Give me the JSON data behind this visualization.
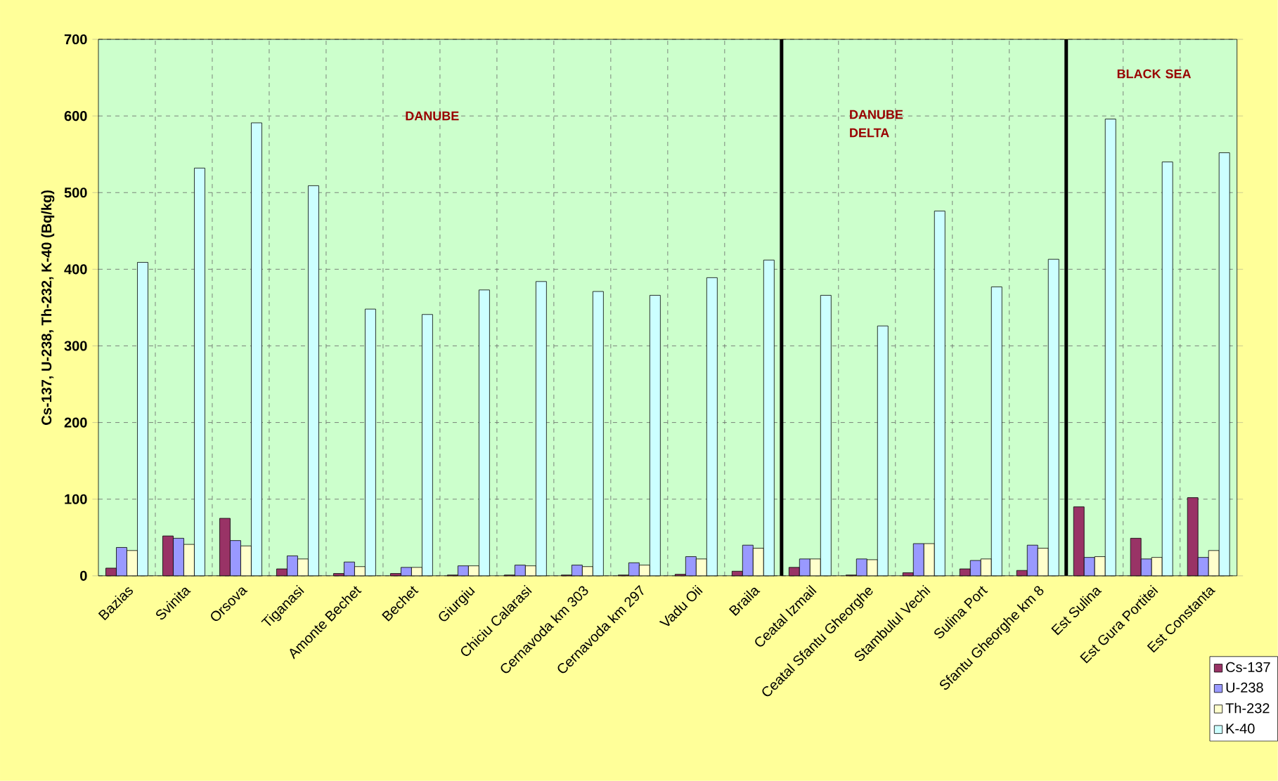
{
  "chart_data": {
    "type": "bar",
    "ylabel": "Cs-137, U-238, Th-232, K-40 (Bq/kg)",
    "categories": [
      "Bazias",
      "Svinita",
      "Orsova",
      "Tiganasi",
      "Amonte Bechet",
      "Bechet",
      "Giurgiu",
      "Chiciu Calarasi",
      "Cernavoda km 303",
      "Cernavoda km 297",
      "Vadu Oii",
      "Braila",
      "Ceatal Izmail",
      "Ceatal Sfantu Gheorghe",
      "Stambulul Vechi",
      "Sulina Port",
      "Sfantu Gheorghe km 8",
      "Est Sulina",
      "Est Gura Portitei",
      "Est Constanta"
    ],
    "series": [
      {
        "name": "Cs-137",
        "color": "#993366",
        "values": [
          10,
          52,
          75,
          9,
          3,
          3,
          1,
          1,
          1,
          1,
          2,
          6,
          11,
          1,
          4,
          9,
          7,
          90,
          49,
          102
        ]
      },
      {
        "name": "U-238",
        "color": "#9999ff",
        "values": [
          37,
          49,
          46,
          26,
          18,
          11,
          13,
          14,
          14,
          17,
          25,
          40,
          22,
          22,
          42,
          20,
          40,
          24,
          22,
          24
        ]
      },
      {
        "name": "Th-232",
        "color": "#ffffcc",
        "values": [
          33,
          41,
          39,
          22,
          12,
          11,
          13,
          13,
          12,
          14,
          22,
          36,
          22,
          21,
          42,
          22,
          36,
          25,
          24,
          33
        ]
      },
      {
        "name": "K-40",
        "color": "#ccffff",
        "values": [
          409,
          532,
          591,
          509,
          348,
          341,
          373,
          384,
          371,
          366,
          389,
          412,
          366,
          326,
          476,
          377,
          413,
          596,
          540,
          552
        ]
      }
    ],
    "ylim": [
      0,
      700
    ],
    "yticks": [
      0,
      100,
      200,
      300,
      400,
      500,
      600,
      700
    ],
    "annotations": [
      "DANUBE",
      "DANUBE DELTA",
      "BLACK SEA"
    ],
    "grid": true,
    "legend": "bottom right"
  }
}
